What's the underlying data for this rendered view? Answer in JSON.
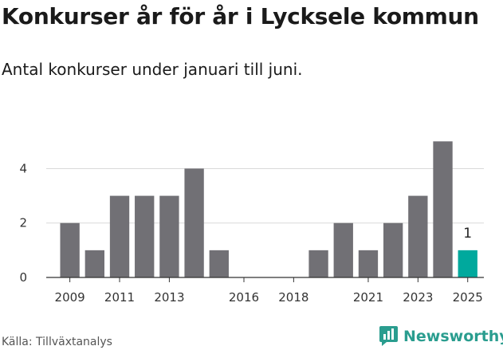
{
  "header": {
    "title": "Konkurser år för år i Lycksele kommun",
    "subtitle": "Antal konkurser under januari till juni."
  },
  "footer": {
    "source": "Källa: Tillväxtanalys",
    "brand": "Newsworthy"
  },
  "colors": {
    "bar": "#717075",
    "highlight": "#00a99d",
    "grid": "#d9d9d9",
    "brand": "#2a9d8f"
  },
  "chart_data": {
    "type": "bar",
    "categories": [
      "2009",
      "2010",
      "2011",
      "2012",
      "2013",
      "2014",
      "2015",
      "2016",
      "2017",
      "2018",
      "2019",
      "2020",
      "2021",
      "2022",
      "2023",
      "2024",
      "2025"
    ],
    "values": [
      2,
      1,
      3,
      3,
      3,
      4,
      1,
      0,
      0,
      0,
      1,
      2,
      1,
      2,
      3,
      5,
      1
    ],
    "x_tick_labels": [
      "2009",
      "2011",
      "2013",
      "2016",
      "2018",
      "2021",
      "2023",
      "2025"
    ],
    "y_ticks": [
      0,
      2,
      4
    ],
    "ylim": [
      0,
      5.8
    ],
    "highlight_category": "2025",
    "data_labels": [
      {
        "category": "2025",
        "text": "1"
      }
    ],
    "grid": true,
    "legend": "none"
  }
}
